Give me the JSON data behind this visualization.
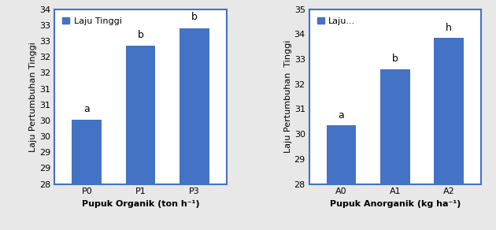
{
  "chart1": {
    "categories": [
      "P0",
      "P1",
      "P3"
    ],
    "values": [
      30.2,
      32.75,
      33.35
    ],
    "bar_color": "#4472C4",
    "ylabel": "Laju Pertumbuhan Tinggi",
    "xlabel": "Pupuk Organik (ton h⁻¹)",
    "legend_label": "Laju Tinggi",
    "ylim": [
      28,
      34
    ],
    "ytick_vals": [
      28,
      29,
      29,
      30,
      30,
      31,
      31,
      32,
      32,
      33,
      33,
      34
    ],
    "annotations": [
      "a",
      "b",
      "b"
    ],
    "ann_offsets": [
      0.2,
      0.2,
      0.2
    ]
  },
  "chart2": {
    "categories": [
      "A0",
      "A1",
      "A2"
    ],
    "values": [
      30.35,
      32.6,
      33.85
    ],
    "bar_color": "#4472C4",
    "ylabel": "Laju Pertumbuhan  Tinggi",
    "xlabel": "Pupuk Anorganik (kg ha⁻¹)",
    "legend_label": "Laju...",
    "ylim": [
      28,
      35
    ],
    "ytick_vals": [
      28,
      29,
      30,
      31,
      32,
      33,
      34,
      35
    ],
    "annotations": [
      "a",
      "b",
      "h"
    ],
    "ann_offsets": [
      0.2,
      0.2,
      0.2
    ]
  },
  "bar_width": 0.55,
  "background_color": "#e8e8e8",
  "plot_bg_color": "#ffffff",
  "legend_facecolor": "#ffffff",
  "fontsize_labels": 8,
  "fontsize_ticks": 8,
  "fontsize_legend": 8,
  "fontsize_annot": 9,
  "box_color": "#4472C4"
}
